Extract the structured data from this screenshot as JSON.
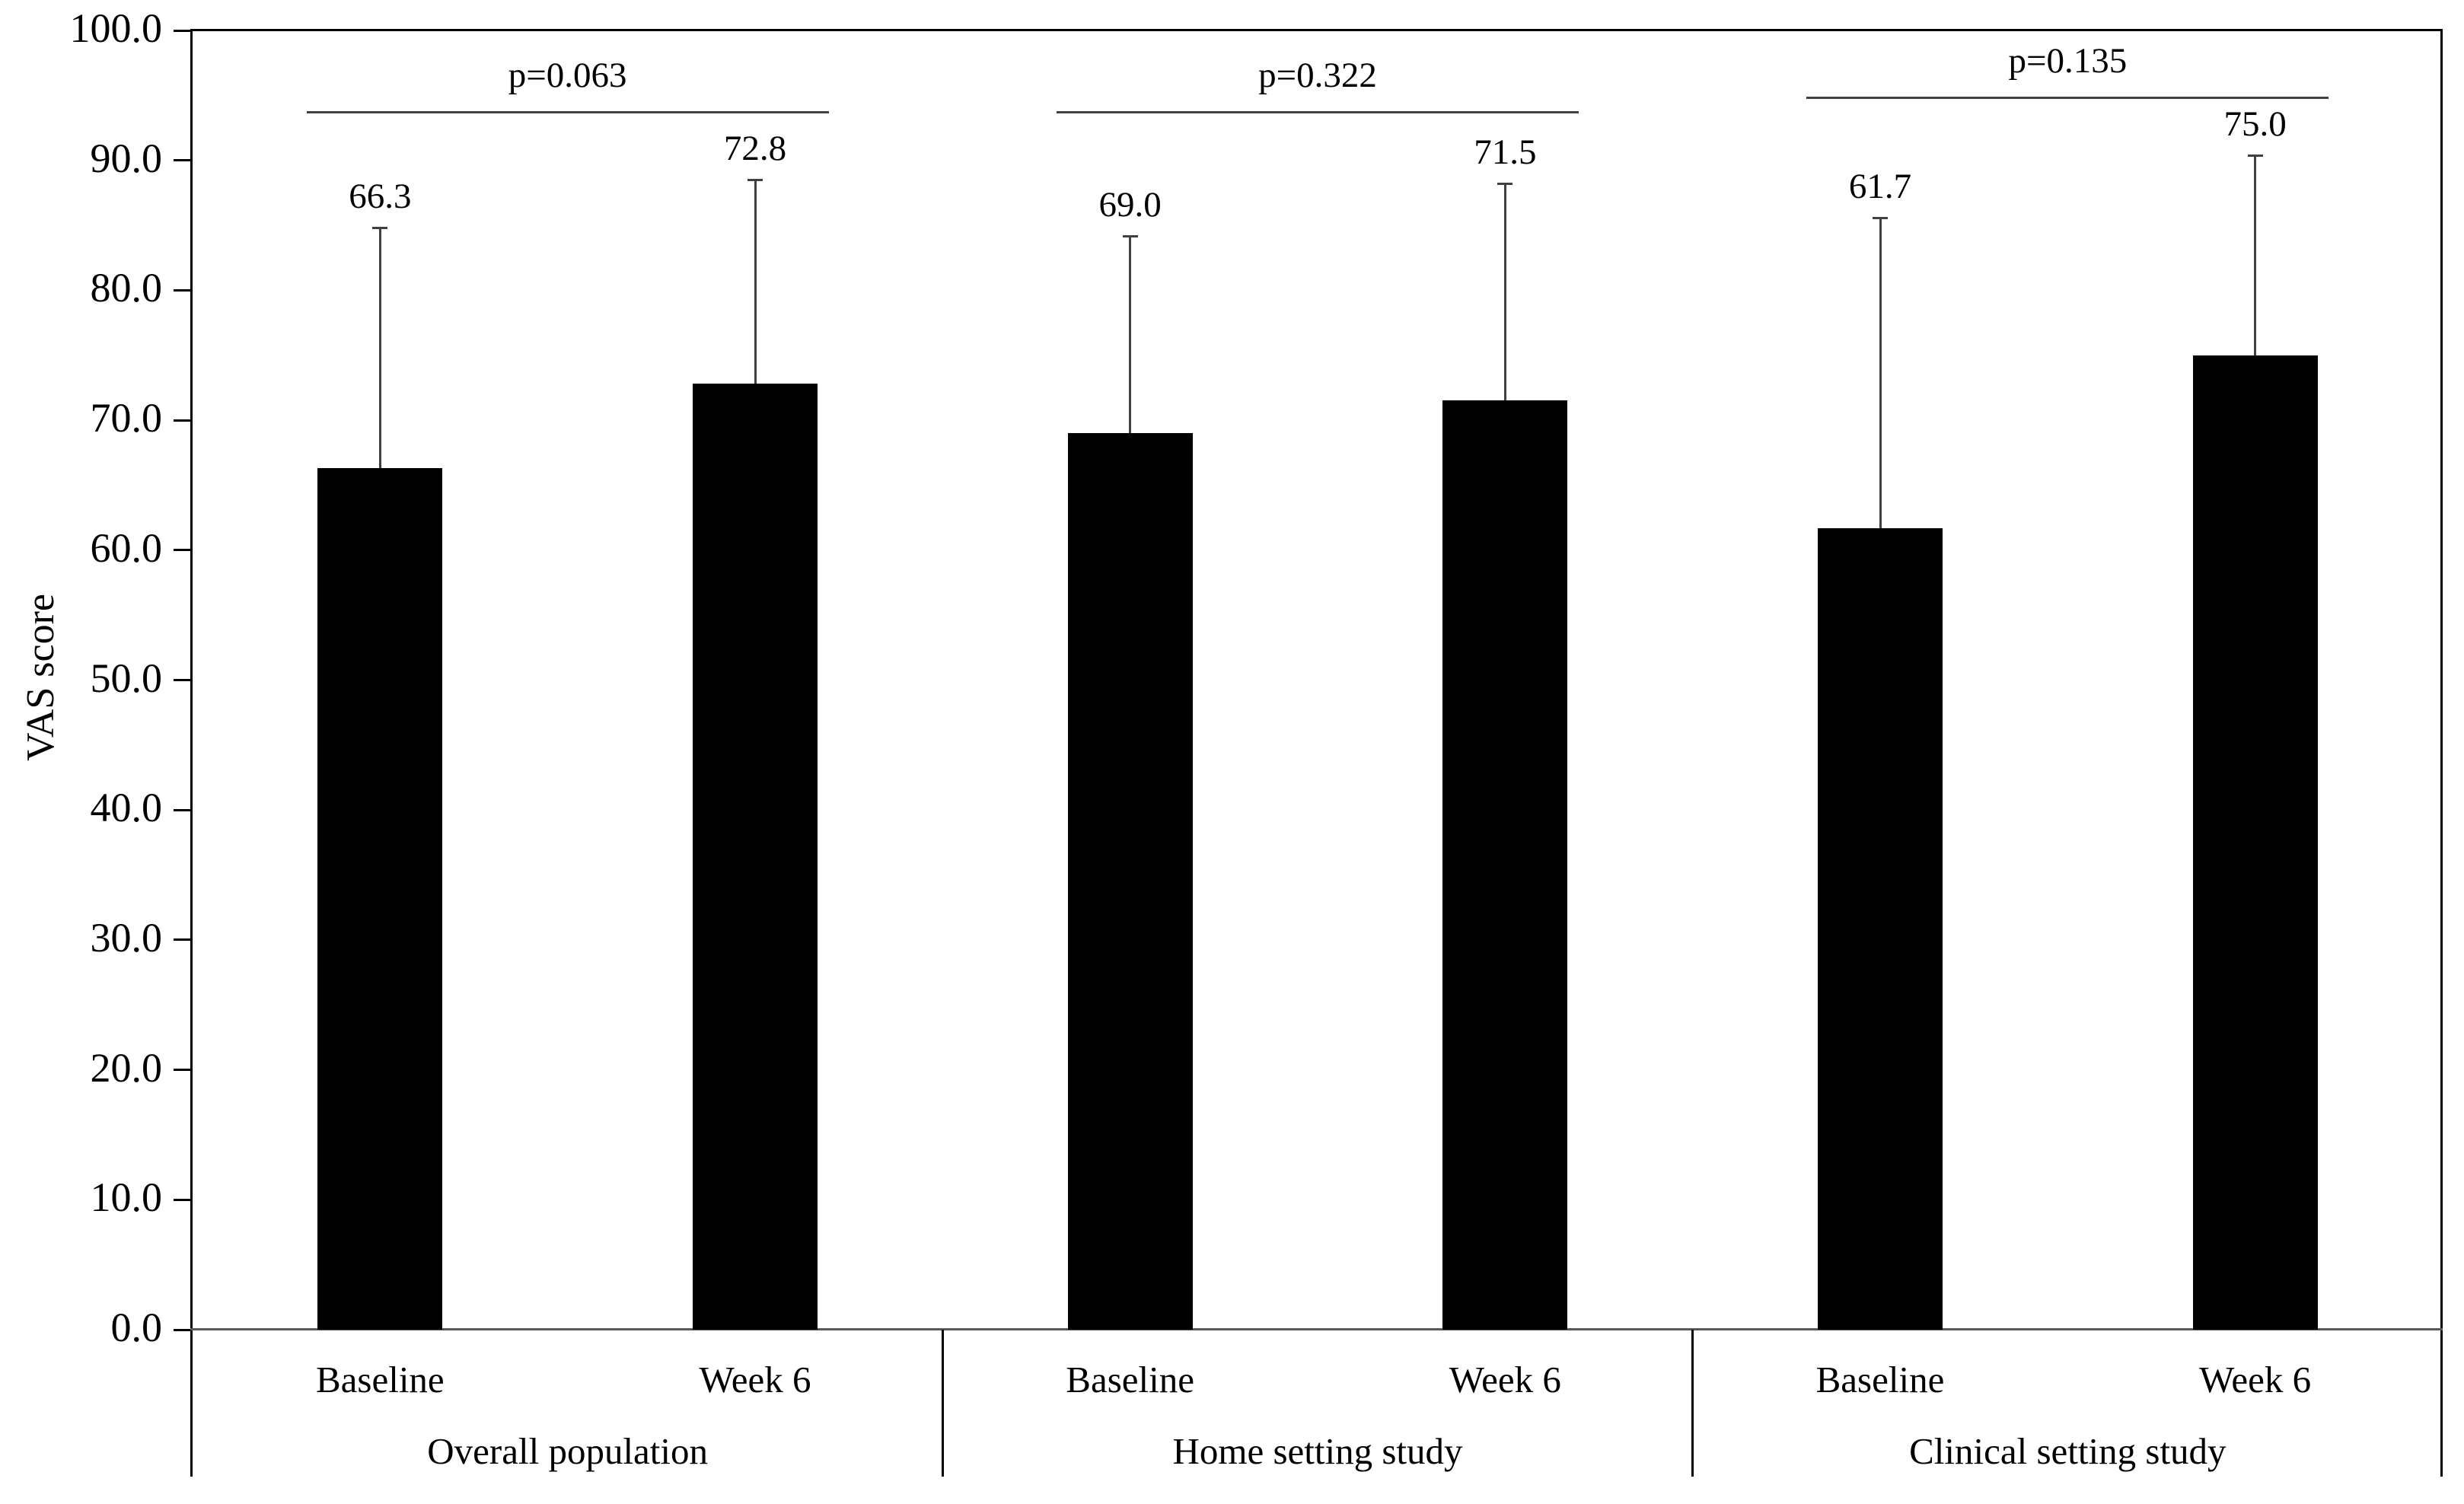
{
  "chart_data": {
    "type": "bar",
    "title": "",
    "ylabel": "VAS score",
    "xlabel": "",
    "ylim": [
      0,
      100
    ],
    "ytick_step": 10,
    "ytick_labels": [
      "0.0",
      "10.0",
      "20.0",
      "30.0",
      "40.0",
      "50.0",
      "60.0",
      "70.0",
      "80.0",
      "90.0",
      "100.0"
    ],
    "grid": false,
    "legend": "none",
    "bar_color": "#000000",
    "axis_color": "#000000",
    "baseline_color": "#595959",
    "errorbar_color": "#404040",
    "bracket_color": "#404040",
    "categories": [
      "Baseline",
      "Week 6"
    ],
    "groups": [
      {
        "label": "Overall population",
        "p_label": "p=0.063",
        "bracket_value": 93.7,
        "bars": [
          {
            "label": "Baseline",
            "value": 66.3,
            "value_label": "66.3",
            "whisker_top": 84.8
          },
          {
            "label": "Week 6",
            "value": 72.8,
            "value_label": "72.8",
            "whisker_top": 88.5
          }
        ]
      },
      {
        "label": "Home setting study",
        "p_label": "p=0.322",
        "bracket_value": 93.7,
        "bars": [
          {
            "label": "Baseline",
            "value": 69.0,
            "value_label": "69.0",
            "whisker_top": 84.2
          },
          {
            "label": "Week 6",
            "value": 71.5,
            "value_label": "71.5",
            "whisker_top": 88.2
          }
        ]
      },
      {
        "label": "Clinical setting study",
        "p_label": "p=0.135",
        "bracket_value": 94.8,
        "bars": [
          {
            "label": "Baseline",
            "value": 61.7,
            "value_label": "61.7",
            "whisker_top": 85.6
          },
          {
            "label": "Week 6",
            "value": 75.0,
            "value_label": "75.0",
            "whisker_top": 90.4
          }
        ]
      }
    ]
  }
}
